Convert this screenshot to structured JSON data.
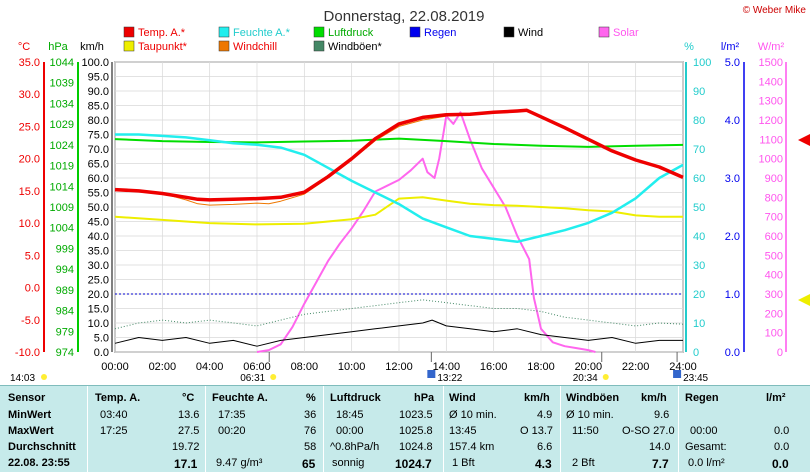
{
  "header": {
    "date_title": "Donnerstag, 22.08.2019",
    "credit": "© Weber Mike"
  },
  "colors": {
    "temp": "#ee0000",
    "dewpoint": "#eeee00",
    "humidity": "#22eeee",
    "windchill": "#ee7700",
    "pressure": "#00dd00",
    "gusts": "#448866",
    "rain": "#0000ee",
    "wind": "#000000",
    "solar": "#ff66ee",
    "table_bg": "#c6eaea"
  },
  "legend": [
    {
      "label": "Temp. A.*",
      "color": "#ee0000"
    },
    {
      "label": "Feuchte A.*",
      "color": "#22eeee"
    },
    {
      "label": "Luftdruck",
      "color": "#00dd00"
    },
    {
      "label": "Regen",
      "color": "#0000ee"
    },
    {
      "label": "Wind",
      "color": "#000000"
    },
    {
      "label": "Solar",
      "color": "#ff66ee"
    },
    {
      "label": "Taupunkt*",
      "color": "#eeee00"
    },
    {
      "label": "Windchill",
      "color": "#ee7700"
    },
    {
      "label": "Windböen*",
      "color": "#448866"
    }
  ],
  "chart_data": {
    "type": "line",
    "x_unit": "time of day",
    "x_ticks": [
      "00:00",
      "02:00",
      "04:00",
      "06:00",
      "08:00",
      "10:00",
      "12:00",
      "14:00",
      "16:00",
      "18:00",
      "20:00",
      "22:00",
      "24:00"
    ],
    "axes": {
      "temp_c": {
        "unit": "°C",
        "range": [
          -10,
          35
        ],
        "ticks": [
          "35.0",
          "30.0",
          "25.0",
          "20.0",
          "15.0",
          "10.0",
          "5.0",
          "0.0",
          "-5.0",
          "-10.0"
        ]
      },
      "pressure_hpa": {
        "unit": "hPa",
        "range": [
          974,
          1044
        ],
        "ticks": [
          "1044",
          "1039",
          "1034",
          "1029",
          "1024",
          "1019",
          "1014",
          "1009",
          "1004",
          "999",
          "994",
          "989",
          "984",
          "979",
          "974"
        ]
      },
      "wind_kmh": {
        "unit": "km/h",
        "range": [
          0,
          100
        ],
        "ticks": [
          "100.0",
          "95.0",
          "90.0",
          "85.0",
          "80.0",
          "75.0",
          "70.0",
          "65.0",
          "60.0",
          "55.0",
          "50.0",
          "45.0",
          "40.0",
          "35.0",
          "30.0",
          "25.0",
          "20.0",
          "15.0",
          "10.0",
          "5.0",
          "0.0"
        ]
      },
      "humidity_pct": {
        "unit": "%",
        "range": [
          0,
          100
        ],
        "ticks": [
          "100",
          "90",
          "80",
          "70",
          "60",
          "50",
          "40",
          "30",
          "20",
          "10",
          "0"
        ]
      },
      "rain_lm2": {
        "unit": "l/m²",
        "range": [
          0,
          5
        ],
        "ticks": [
          "5.0",
          "4.0",
          "3.0",
          "2.0",
          "1.0",
          "0.0"
        ]
      },
      "solar_wm2": {
        "unit": "W/m²",
        "range": [
          0,
          1500
        ],
        "ticks": [
          "1500",
          "1400",
          "1300",
          "1200",
          "1100",
          "1000",
          "900",
          "800",
          "700",
          "600",
          "500",
          "400",
          "300",
          "200",
          "100",
          "0"
        ]
      }
    },
    "series": [
      {
        "name": "Temp. A.*",
        "axis": "temp_c",
        "x": [
          0,
          1,
          2,
          3,
          3.5,
          4,
          5,
          6,
          6.5,
          7,
          8,
          9,
          10,
          11,
          12,
          13,
          14,
          15,
          16,
          17,
          17.4,
          18,
          19,
          20,
          21,
          22,
          23,
          24
        ],
        "y": [
          15.2,
          15.0,
          14.6,
          14.0,
          13.7,
          13.6,
          13.7,
          13.8,
          13.9,
          14.0,
          14.8,
          17.2,
          20.0,
          23.1,
          25.4,
          26.4,
          26.8,
          26.9,
          27.2,
          27.4,
          27.5,
          26.5,
          24.8,
          23.0,
          21.2,
          19.8,
          18.7,
          17.1
        ]
      },
      {
        "name": "Windchill",
        "axis": "temp_c",
        "x": [
          0,
          1,
          2,
          3,
          3.5,
          4,
          5,
          6,
          6.5,
          7,
          8,
          9,
          10,
          11,
          12,
          13,
          14,
          15,
          16,
          17,
          17.4,
          18,
          19,
          20,
          21,
          22,
          23,
          24
        ],
        "y": [
          15.2,
          15.0,
          14.6,
          13.6,
          13.0,
          12.8,
          12.9,
          13.1,
          13.0,
          13.4,
          14.5,
          17.0,
          19.8,
          22.8,
          25.0,
          26.0,
          26.6,
          26.8,
          27.1,
          27.3,
          27.4,
          26.4,
          24.7,
          23.0,
          21.2,
          19.8,
          18.7,
          17.1
        ]
      },
      {
        "name": "Taupunkt*",
        "axis": "temp_c",
        "x": [
          0,
          2,
          4,
          6,
          8,
          10,
          11,
          12,
          13,
          14,
          15,
          16,
          17,
          18,
          19,
          20,
          21,
          22,
          23,
          24
        ],
        "y": [
          11.0,
          10.5,
          10.0,
          9.8,
          9.9,
          10.6,
          11.3,
          13.8,
          14.0,
          13.5,
          13.0,
          12.8,
          12.7,
          12.5,
          12.3,
          12.0,
          11.8,
          11.2,
          11.0,
          11.0
        ]
      },
      {
        "name": "Feuchte A.*",
        "axis": "humidity_pct",
        "x": [
          0,
          1,
          2,
          3,
          4,
          5,
          6,
          7,
          8,
          9,
          10,
          11,
          12,
          13,
          14,
          15,
          16,
          17,
          18,
          19,
          20,
          21,
          22,
          23,
          24
        ],
        "y": [
          75.0,
          75.0,
          74.5,
          74.0,
          73.0,
          72.0,
          71.5,
          70.5,
          68.0,
          63.5,
          59.0,
          55.0,
          51.0,
          46.0,
          43.0,
          40.0,
          39.0,
          38.0,
          40.0,
          42.0,
          44.5,
          48.0,
          53.0,
          60.0,
          64.5
        ]
      },
      {
        "name": "Luftdruck",
        "axis": "pressure_hpa",
        "x": [
          0,
          2,
          4,
          6,
          8,
          10,
          12,
          14,
          16,
          18,
          20,
          22,
          24
        ],
        "y": [
          1025.4,
          1024.9,
          1024.7,
          1024.6,
          1024.8,
          1025.0,
          1025.5,
          1024.9,
          1024.2,
          1023.8,
          1023.5,
          1023.8,
          1024.0
        ]
      },
      {
        "name": "Wind",
        "axis": "wind_kmh",
        "x": [
          0,
          1,
          2,
          3,
          4,
          5,
          6,
          7,
          8,
          9,
          10,
          11,
          12,
          13,
          13.4,
          14,
          15,
          16,
          17,
          18,
          19,
          20,
          21,
          22,
          23,
          24
        ],
        "y": [
          3,
          5,
          4,
          5,
          3,
          4,
          2,
          4,
          5,
          6,
          7,
          8,
          9,
          10,
          11,
          9,
          8,
          7,
          8,
          6,
          5,
          4,
          5,
          3,
          4,
          4
        ]
      },
      {
        "name": "Windböen*",
        "axis": "wind_kmh",
        "x": [
          0,
          1,
          2,
          3,
          4,
          5,
          6,
          7,
          8,
          9,
          10,
          11,
          12,
          13,
          14,
          15,
          16,
          17,
          18,
          19,
          20,
          21,
          22,
          23,
          24
        ],
        "y": [
          8,
          10,
          11,
          10,
          11,
          10,
          9,
          11,
          13,
          14,
          15,
          16,
          17,
          18,
          17,
          16,
          15,
          15,
          14,
          12,
          11,
          10,
          9,
          10,
          9.6
        ]
      },
      {
        "name": "Solar",
        "axis": "solar_wm2",
        "x": [
          6,
          6.5,
          7,
          7.5,
          8,
          8.5,
          9,
          9.5,
          10,
          10.5,
          11,
          11.5,
          12,
          12.5,
          13,
          13.2,
          13.5,
          13.7,
          14,
          14.3,
          14.6,
          15,
          15.5,
          16,
          16.5,
          17,
          17.5,
          17.7,
          18,
          18.5,
          19,
          19.5,
          20,
          20.3
        ],
        "y": [
          0,
          10,
          40,
          130,
          250,
          360,
          470,
          560,
          640,
          730,
          830,
          860,
          890,
          940,
          1000,
          930,
          900,
          1000,
          1220,
          1180,
          1240,
          1100,
          950,
          850,
          750,
          600,
          480,
          280,
          120,
          50,
          30,
          20,
          10,
          0
        ]
      }
    ],
    "sun_events": {
      "rise": "06:31",
      "noon": "13:22",
      "set": "20:34",
      "midnight": "23:45"
    },
    "time_labels": {
      "start": "14:03"
    }
  },
  "table": {
    "headers": {
      "sensor": "Sensor",
      "temp": "Temp. A.",
      "temp_unit": "°C",
      "hum": "Feuchte A.",
      "hum_unit": "%",
      "press": "Luftdruck",
      "press_unit": "hPa",
      "wind": "Wind",
      "wind_unit": "km/h",
      "gust": "Windböen",
      "gust_unit": "km/h",
      "rain": "Regen",
      "rain_unit": "l/m²"
    },
    "rows": [
      {
        "label": "MinWert",
        "t_time": "03:40",
        "t_val": "13.6",
        "h_time": "17:35",
        "h_val": "36",
        "p_time": "18:45",
        "p_val": "1023.5",
        "w_label": "Ø 10 min.",
        "w_val": "4.9",
        "g_label": "Ø 10 min.",
        "g_val": "9.6",
        "r_time": "",
        "r_val": ""
      },
      {
        "label": "MaxWert",
        "t_time": "17:25",
        "t_val": "27.5",
        "h_time": "00:20",
        "h_val": "76",
        "p_time": "00:00",
        "p_val": "1025.8",
        "w_label": "13:45",
        "w_val": "O 13.7",
        "g_label": "11:50",
        "g_val": "O-SO 27.0",
        "r_time": "00:00",
        "r_val": "0.0"
      },
      {
        "label": "Durchschnitt",
        "t_time": "",
        "t_val": "19.72",
        "h_time": "",
        "h_val": "58",
        "p_time": "^0.8hPa/h",
        "p_val": "1024.8",
        "w_label": "157.4 km",
        "w_val": "6.6",
        "g_label": "",
        "g_val": "14.0",
        "r_time": "Gesamt:",
        "r_val": "0.0"
      },
      {
        "label": "22.08. 23:55",
        "t_time": "",
        "t_val": "17.1",
        "h_time": "9.47 g/m³",
        "h_val": "65",
        "p_time": "sonnig",
        "p_val": "1024.7",
        "w_label": "1 Bft",
        "w_val": "4.3",
        "g_label": "2 Bft",
        "g_val": "7.7",
        "r_time": "0.0 l/m²",
        "r_val": "0.0"
      }
    ]
  }
}
